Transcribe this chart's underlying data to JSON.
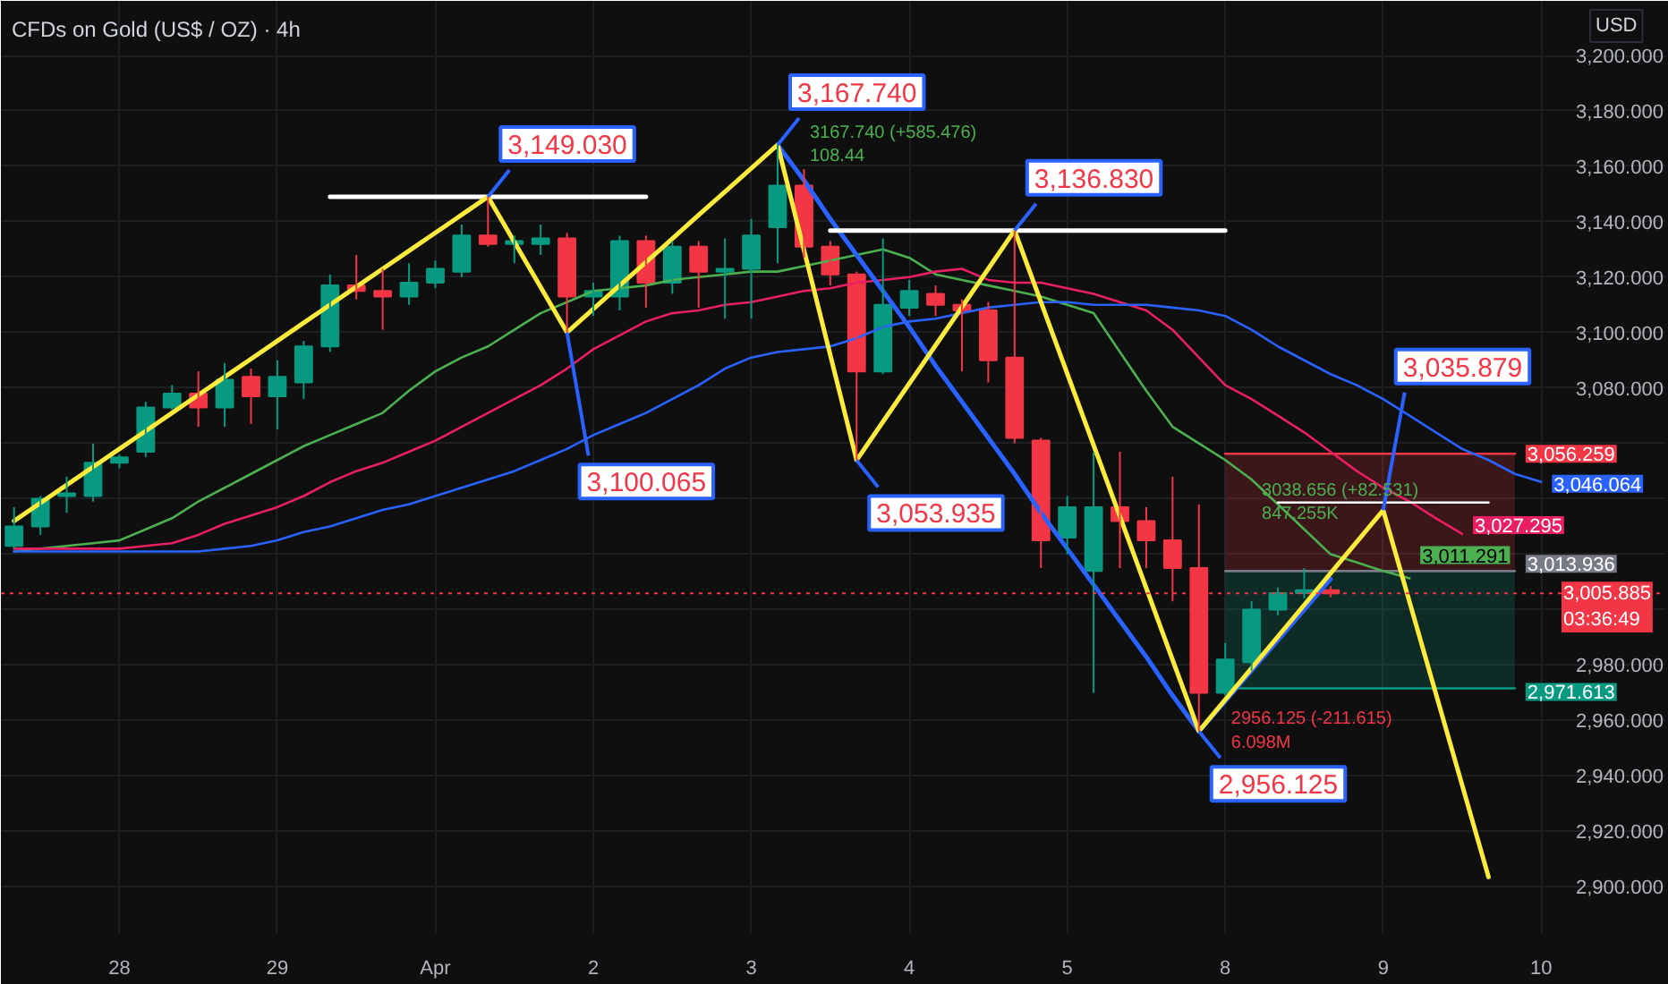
{
  "chart_data": {
    "type": "candlestick",
    "title": "CFDs on Gold (US$ / OZ) · 4h",
    "ylabel": "USD",
    "categories": [
      null,
      null,
      null,
      null,
      "28",
      null,
      null,
      null,
      null,
      null,
      "29",
      null,
      null,
      null,
      null,
      null,
      "Apr",
      null,
      null,
      null,
      null,
      null,
      "2",
      null,
      null,
      null,
      null,
      null,
      "3",
      null,
      null,
      null,
      null,
      null,
      "4",
      null,
      null,
      null,
      null,
      null,
      "5",
      null,
      null,
      null,
      null,
      null,
      "8",
      null,
      null,
      null,
      null,
      null,
      "9",
      null,
      null,
      null,
      null,
      null,
      "10"
    ],
    "ylim": [
      2883.3,
      3219.7
    ],
    "yticks": [
      {
        "value": 2900,
        "label": "2,900.000"
      },
      {
        "value": 2920,
        "label": "2,920.000"
      },
      {
        "value": 2940,
        "label": "2,940.000"
      },
      {
        "value": 2960,
        "label": "2,960.000"
      },
      {
        "value": 2980,
        "label": "2,980.000"
      },
      {
        "value": 3000,
        "label": null
      },
      {
        "value": 3020,
        "label": null
      },
      {
        "value": 3040,
        "label": null
      },
      {
        "value": 3060,
        "label": null
      },
      {
        "value": 3080,
        "label": "3,080.000"
      },
      {
        "value": 3100,
        "label": "3,100.000"
      },
      {
        "value": 3120,
        "label": "3,120.000"
      },
      {
        "value": 3140,
        "label": "3,140.000"
      },
      {
        "value": 3160,
        "label": "3,160.000"
      },
      {
        "value": 3180,
        "label": "3,180.000"
      },
      {
        "value": 3200,
        "label": "3,200.000"
      }
    ],
    "grid": true,
    "series": [
      {
        "type": "line",
        "color": "#f23645",
        "values": [
          null,
          null,
          null,
          null,
          null,
          null,
          null,
          null,
          null,
          null,
          null,
          null,
          null,
          null,
          null,
          null,
          null,
          null,
          null,
          null,
          null,
          null,
          null,
          null,
          null,
          null,
          null,
          null,
          null,
          null,
          null,
          null,
          null,
          null,
          null,
          null,
          null,
          null,
          null,
          null,
          null,
          null,
          null,
          null,
          null,
          null,
          3056.259,
          3056.259,
          3056.259,
          3056.259,
          3056.259,
          3056.259,
          3056.259,
          3056.259,
          3056.259,
          3056.259,
          3056.259,
          3056.259,
          null
        ],
        "upper": [
          null,
          null,
          null,
          null,
          null,
          null,
          null,
          null,
          null,
          null,
          null,
          null,
          null,
          null,
          null,
          null,
          null,
          null,
          null,
          null,
          null,
          null,
          null,
          null,
          null,
          null,
          null,
          null,
          null,
          null,
          null,
          null,
          null,
          null,
          null,
          null,
          null,
          null,
          null,
          null,
          null,
          null,
          null,
          null,
          null,
          null,
          3056.259,
          3056.259,
          3056.259,
          3056.259,
          3056.259,
          3056.259,
          3056.259,
          3056.259,
          3056.259,
          3056.259,
          3056.259,
          3056.259,
          null
        ],
        "lower": [
          null,
          null,
          null,
          null,
          null,
          null,
          null,
          null,
          null,
          null,
          null,
          null,
          null,
          null,
          null,
          null,
          null,
          null,
          null,
          null,
          null,
          null,
          null,
          null,
          null,
          null,
          null,
          null,
          null,
          null,
          null,
          null,
          null,
          null,
          null,
          null,
          null,
          null,
          null,
          null,
          null,
          null,
          null,
          null,
          null,
          null,
          3013.936,
          3013.936,
          3013.936,
          3013.936,
          3013.936,
          3013.936,
          3013.936,
          3013.936,
          3013.936,
          3013.936,
          3013.936,
          3013.936,
          null
        ],
        "value_labels": [
          null,
          null,
          null,
          null,
          null,
          null,
          null,
          null,
          null,
          null,
          null,
          null,
          null,
          null,
          null,
          null,
          null,
          null,
          null,
          null,
          null,
          null,
          null,
          null,
          null,
          null,
          null,
          null,
          null,
          null,
          null,
          null,
          null,
          null,
          null,
          null,
          null,
          null,
          null,
          null,
          null,
          null,
          null,
          null,
          null,
          null,
          null,
          null,
          null,
          null,
          null,
          null,
          null,
          null,
          null,
          null,
          null,
          "3,056.259",
          null
        ]
      },
      {
        "type": "line",
        "color": "#089981",
        "values": [
          null,
          null,
          null,
          null,
          null,
          null,
          null,
          null,
          null,
          null,
          null,
          null,
          null,
          null,
          null,
          null,
          null,
          null,
          null,
          null,
          null,
          null,
          null,
          null,
          null,
          null,
          null,
          null,
          null,
          null,
          null,
          null,
          null,
          null,
          null,
          null,
          null,
          null,
          null,
          null,
          null,
          null,
          null,
          null,
          null,
          null,
          2971.613,
          2971.613,
          2971.613,
          2971.613,
          2971.613,
          2971.613,
          2971.613,
          2971.613,
          2971.613,
          2971.613,
          2971.613,
          2971.613,
          null
        ],
        "upper": [
          null,
          null,
          null,
          null,
          null,
          null,
          null,
          null,
          null,
          null,
          null,
          null,
          null,
          null,
          null,
          null,
          null,
          null,
          null,
          null,
          null,
          null,
          null,
          null,
          null,
          null,
          null,
          null,
          null,
          null,
          null,
          null,
          null,
          null,
          null,
          null,
          null,
          null,
          null,
          null,
          null,
          null,
          null,
          null,
          null,
          null,
          3013.936,
          3013.936,
          3013.936,
          3013.936,
          3013.936,
          3013.936,
          3013.936,
          3013.936,
          3013.936,
          3013.936,
          3013.936,
          3013.936,
          null
        ],
        "lower": [
          null,
          null,
          null,
          null,
          null,
          null,
          null,
          null,
          null,
          null,
          null,
          null,
          null,
          null,
          null,
          null,
          null,
          null,
          null,
          null,
          null,
          null,
          null,
          null,
          null,
          null,
          null,
          null,
          null,
          null,
          null,
          null,
          null,
          null,
          null,
          null,
          null,
          null,
          null,
          null,
          null,
          null,
          null,
          null,
          null,
          null,
          2971.613,
          2971.613,
          2971.613,
          2971.613,
          2971.613,
          2971.613,
          2971.613,
          2971.613,
          2971.613,
          2971.613,
          2971.613,
          2971.613,
          null
        ],
        "value_labels": [
          null,
          null,
          null,
          null,
          null,
          null,
          null,
          null,
          null,
          null,
          null,
          null,
          null,
          null,
          null,
          null,
          null,
          null,
          null,
          null,
          null,
          null,
          null,
          null,
          null,
          null,
          null,
          null,
          null,
          null,
          null,
          null,
          null,
          null,
          null,
          null,
          null,
          null,
          null,
          null,
          null,
          null,
          null,
          null,
          null,
          null,
          null,
          null,
          null,
          null,
          null,
          null,
          null,
          null,
          null,
          null,
          null,
          "2,971.613",
          null
        ]
      },
      {
        "type": "line",
        "color": "#787b86",
        "values": [
          null,
          null,
          null,
          null,
          null,
          null,
          null,
          null,
          null,
          null,
          null,
          null,
          null,
          null,
          null,
          null,
          null,
          null,
          null,
          null,
          null,
          null,
          null,
          null,
          null,
          null,
          null,
          null,
          null,
          null,
          null,
          null,
          null,
          null,
          null,
          null,
          null,
          null,
          null,
          null,
          null,
          null,
          null,
          null,
          null,
          null,
          3013.936,
          3013.936,
          3013.936,
          3013.936,
          3013.936,
          3013.936,
          3013.936,
          3013.936,
          3013.936,
          3013.936,
          3013.936,
          3013.936,
          null
        ],
        "value_labels": [
          null,
          null,
          null,
          null,
          null,
          null,
          null,
          null,
          null,
          null,
          null,
          null,
          null,
          null,
          null,
          null,
          null,
          null,
          null,
          null,
          null,
          null,
          null,
          null,
          null,
          null,
          null,
          null,
          null,
          null,
          null,
          null,
          null,
          null,
          null,
          null,
          null,
          null,
          null,
          null,
          null,
          null,
          null,
          null,
          null,
          null,
          null,
          null,
          null,
          null,
          null,
          null,
          null,
          null,
          null,
          null,
          null,
          "3,013.936",
          null
        ]
      },
      {
        "type": "line",
        "color": "#4caf50",
        "values": [
          3021,
          3022,
          3023,
          3024,
          3025,
          3029,
          3033,
          3039,
          3044,
          3049,
          3054,
          3059,
          3063,
          3067,
          3071,
          3079,
          3086,
          3091,
          3095,
          3101,
          3107,
          3111,
          3115,
          3116,
          3117,
          3119,
          3120,
          3121,
          3122,
          3122,
          3124,
          3126,
          3128,
          3130,
          3127,
          3121,
          3119,
          3117,
          3115,
          3113,
          3110,
          3107,
          3093,
          3079,
          3066,
          3060,
          3054,
          3047,
          3038,
          3029,
          3020,
          3017,
          3014,
          3011.291,
          null,
          null,
          null,
          null,
          null
        ],
        "value_labels": [
          null,
          null,
          null,
          null,
          null,
          null,
          null,
          null,
          null,
          null,
          null,
          null,
          null,
          null,
          null,
          null,
          null,
          null,
          null,
          null,
          null,
          null,
          null,
          null,
          null,
          null,
          null,
          null,
          null,
          null,
          null,
          null,
          null,
          null,
          null,
          null,
          null,
          null,
          null,
          null,
          null,
          null,
          null,
          null,
          null,
          null,
          null,
          null,
          null,
          null,
          null,
          null,
          null,
          "3,011.291",
          null,
          null,
          null,
          null,
          null
        ]
      },
      {
        "type": "line",
        "color": "#e91e63",
        "values": [
          3022,
          3022,
          3022,
          3022,
          3022,
          3023,
          3024,
          3027,
          3031,
          3034,
          3037,
          3041,
          3046,
          3050,
          3053,
          3057,
          3061,
          3066,
          3071,
          3076,
          3081,
          3087,
          3094,
          3099,
          3104,
          3107,
          3108,
          3110,
          3111,
          3113,
          3115,
          3116,
          3118,
          3119,
          3120,
          3122,
          3123,
          3119,
          3118,
          3118,
          3116,
          3114,
          3111,
          3108,
          3101,
          3091,
          3081,
          3076,
          3070,
          3064,
          3057,
          3050,
          3044,
          3039,
          3033,
          3027.295,
          null,
          null,
          null
        ],
        "value_labels": [
          null,
          null,
          null,
          null,
          null,
          null,
          null,
          null,
          null,
          null,
          null,
          null,
          null,
          null,
          null,
          null,
          null,
          null,
          null,
          null,
          null,
          null,
          null,
          null,
          null,
          null,
          null,
          null,
          null,
          null,
          null,
          null,
          null,
          null,
          null,
          null,
          null,
          null,
          null,
          null,
          null,
          null,
          null,
          null,
          null,
          null,
          null,
          null,
          null,
          null,
          null,
          null,
          null,
          null,
          null,
          "3,027.295",
          null,
          null,
          null
        ]
      },
      {
        "type": "line",
        "color": "#2962ff",
        "values": [
          3021,
          3021,
          3021,
          3021,
          3021,
          3021,
          3021,
          3021,
          3022,
          3023,
          3025,
          3028,
          3030,
          3033,
          3036,
          3038,
          3041,
          3044,
          3047,
          3050,
          3054,
          3058,
          3063,
          3067,
          3071,
          3076,
          3081,
          3087,
          3091,
          3093,
          3094,
          3095,
          3098,
          3102,
          3104,
          3105,
          3107,
          3109,
          3110,
          3111,
          3111,
          3110,
          3110,
          3110,
          3109,
          3108,
          3106,
          3101,
          3095,
          3090,
          3085,
          3081,
          3076,
          3070,
          3064,
          3058,
          3054,
          3049,
          3046.064
        ],
        "value_labels": [
          null,
          null,
          null,
          null,
          null,
          null,
          null,
          null,
          null,
          null,
          null,
          null,
          null,
          null,
          null,
          null,
          null,
          null,
          null,
          null,
          null,
          null,
          null,
          null,
          null,
          null,
          null,
          null,
          null,
          null,
          null,
          null,
          null,
          null,
          null,
          null,
          null,
          null,
          null,
          null,
          null,
          null,
          null,
          null,
          null,
          null,
          null,
          null,
          null,
          null,
          null,
          null,
          null,
          null,
          null,
          null,
          null,
          null,
          "3,046.064"
        ]
      },
      {
        "ohlc": [
          [
            3023,
            3037,
            3022,
            3030
          ],
          [
            3030,
            3041,
            3027,
            3040
          ],
          [
            3041,
            3048,
            3035,
            3042
          ],
          [
            3041,
            3060,
            3039,
            3053
          ],
          [
            3053,
            3056,
            3051,
            3055
          ],
          [
            3057,
            3075,
            3055,
            3073
          ],
          [
            3073,
            3081,
            3072,
            3078
          ],
          [
            3078,
            3086,
            3066,
            3073
          ],
          [
            3073,
            3089,
            3066,
            3083
          ],
          [
            3084,
            3087,
            3067,
            3077
          ],
          [
            3077,
            3090,
            3065,
            3084
          ],
          [
            3082,
            3097,
            3076,
            3095
          ],
          [
            3095,
            3121,
            3093,
            3117
          ],
          [
            3117,
            3128,
            3112,
            3115
          ],
          [
            3115,
            3123,
            3101,
            3113
          ],
          [
            3113,
            3125,
            3110,
            3118
          ],
          [
            3118,
            3126,
            3116,
            3123
          ],
          [
            3122,
            3139,
            3120,
            3135
          ],
          [
            3135,
            3149.03,
            3131,
            3132
          ],
          [
            3132,
            3135,
            3125,
            3133
          ],
          [
            3132,
            3139,
            3128,
            3134
          ],
          [
            3134,
            3136,
            3100.065,
            3113
          ],
          [
            3113,
            3118,
            3106,
            3115
          ],
          [
            3113,
            3135,
            3108,
            3133
          ],
          [
            3133,
            3135,
            3109,
            3118
          ],
          [
            3118,
            3133,
            3114,
            3131
          ],
          [
            3131,
            3133,
            3109,
            3122
          ],
          [
            3122,
            3134,
            3105,
            3123
          ],
          [
            3123,
            3141,
            3105,
            3135
          ],
          [
            3138,
            3167.74,
            3125,
            3153
          ],
          [
            3153,
            3159,
            3127,
            3131
          ],
          [
            3131,
            3133,
            3117,
            3121
          ],
          [
            3121,
            3122,
            3053.935,
            3086
          ],
          [
            3086,
            3134,
            3085,
            3110
          ],
          [
            3109,
            3119,
            3106,
            3115
          ],
          [
            3114,
            3117,
            3106,
            3110
          ],
          [
            3110,
            3112,
            3086,
            3108
          ],
          [
            3108,
            3111,
            3082,
            3090
          ],
          [
            3091,
            3136.83,
            3060,
            3062
          ],
          [
            3061,
            3062,
            3015,
            3025
          ],
          [
            3026,
            3041,
            3020,
            3037
          ],
          [
            3014,
            3057,
            2970,
            3037
          ],
          [
            3037,
            3057,
            3015,
            3032
          ],
          [
            3032,
            3037,
            3015,
            3025
          ],
          [
            3025,
            3048,
            3003,
            3015
          ],
          [
            3015,
            3038,
            2956.125,
            2970
          ],
          [
            2970,
            2988,
            2969,
            2982
          ],
          [
            2981,
            3003,
            2978,
            3000
          ],
          [
            3000,
            3008,
            2998,
            3006
          ],
          [
            3006,
            3015,
            3004,
            3007
          ],
          [
            3007,
            3008.5,
            3004.5,
            3005.885
          ],
          null,
          null,
          null,
          null,
          null,
          null,
          null,
          null
        ],
        "colors": [
          "#089981",
          "#089981",
          "#089981",
          "#089981",
          "#089981",
          "#089981",
          "#089981",
          "#f23645",
          "#089981",
          "#f23645",
          "#089981",
          "#089981",
          "#089981",
          "#f23645",
          "#f23645",
          "#089981",
          "#089981",
          "#089981",
          "#f23645",
          "#089981",
          "#089981",
          "#f23645",
          "#089981",
          "#089981",
          "#f23645",
          "#089981",
          "#f23645",
          "#089981",
          "#089981",
          "#089981",
          "#f23645",
          "#f23645",
          "#f23645",
          "#089981",
          "#089981",
          "#f23645",
          "#f23645",
          "#f23645",
          "#f23645",
          "#f23645",
          "#089981",
          "#089981",
          "#f23645",
          "#f23645",
          "#f23645",
          "#f23645",
          "#089981",
          "#089981",
          "#089981",
          "#089981",
          "#f23645",
          null,
          null,
          null,
          null,
          null,
          null,
          null,
          null
        ]
      },
      {
        "type": "line",
        "color": "#2962ff",
        "values": [
          null,
          null,
          null,
          null,
          null,
          null,
          null,
          null,
          null,
          null,
          null,
          null,
          null,
          null,
          null,
          null,
          null,
          null,
          null,
          null,
          null,
          null,
          null,
          null,
          null,
          null,
          null,
          null,
          null,
          3167.74,
          3155,
          3141,
          3128,
          3115,
          3102,
          3088,
          3075,
          3062,
          3049,
          3035,
          3022,
          3009,
          2996,
          2983,
          2969,
          2956.125,
          2967,
          2978,
          2989,
          3000,
          3011,
          null,
          null,
          null,
          null,
          null,
          null,
          null,
          null
        ],
        "value_labels": [
          null,
          null,
          null,
          null,
          null,
          null,
          null,
          null,
          null,
          null,
          null,
          null,
          null,
          null,
          null,
          null,
          null,
          null,
          null,
          null,
          null,
          null,
          null,
          null,
          null,
          null,
          null,
          null,
          null,
          "3167.740 (+585.476)\n108.44",
          null,
          null,
          null,
          null,
          null,
          null,
          null,
          null,
          null,
          null,
          null,
          null,
          null,
          null,
          null,
          "2956.125 (-211.615)\n6.098M",
          null,
          null,
          null,
          null,
          null,
          null,
          null,
          null,
          null,
          null,
          null,
          null,
          null
        ]
      },
      {
        "type": "line",
        "color": "#ffffff",
        "values": [
          null,
          null,
          null,
          null,
          null,
          null,
          null,
          null,
          null,
          null,
          null,
          null,
          3149.03,
          3149.03,
          3149.03,
          3149.03,
          3149.03,
          3149.03,
          3149.03,
          3149.03,
          3149.03,
          3149.03,
          3149.03,
          3149.03,
          3149.03,
          null,
          null,
          null,
          null,
          null,
          null,
          null,
          null,
          null,
          null,
          null,
          null,
          null,
          null,
          null,
          null,
          null,
          null,
          null,
          null,
          null,
          null,
          null,
          null,
          null,
          null,
          null,
          null,
          null,
          null,
          null,
          null,
          null,
          null
        ]
      },
      {
        "type": "line",
        "color": "#ffffff",
        "values": [
          null,
          null,
          null,
          null,
          null,
          null,
          null,
          null,
          null,
          null,
          null,
          null,
          null,
          null,
          null,
          null,
          null,
          null,
          null,
          null,
          null,
          null,
          null,
          null,
          null,
          null,
          null,
          null,
          null,
          null,
          null,
          3136.83,
          3136.83,
          3136.83,
          3136.83,
          3136.83,
          3136.83,
          3136.83,
          3136.83,
          3136.83,
          3136.83,
          3136.83,
          3136.83,
          3136.83,
          3136.83,
          3136.83,
          3136.83,
          null,
          null,
          null,
          null,
          null,
          null,
          null,
          null,
          null,
          null,
          null,
          null
        ]
      },
      {
        "type": "line",
        "color": "#ffffff",
        "values": [
          null,
          null,
          null,
          null,
          null,
          null,
          null,
          null,
          null,
          null,
          null,
          null,
          null,
          null,
          null,
          null,
          null,
          null,
          null,
          null,
          null,
          null,
          null,
          null,
          null,
          null,
          null,
          null,
          null,
          null,
          null,
          null,
          null,
          null,
          null,
          null,
          null,
          null,
          null,
          null,
          null,
          null,
          null,
          null,
          null,
          null,
          null,
          null,
          3038.656,
          3038.656,
          3038.656,
          3038.656,
          3038.656,
          3038.656,
          3038.656,
          3038.656,
          3038.656,
          null,
          null
        ],
        "value_labels": [
          null,
          null,
          null,
          null,
          null,
          null,
          null,
          null,
          null,
          null,
          null,
          null,
          null,
          null,
          null,
          null,
          null,
          null,
          null,
          null,
          null,
          null,
          null,
          null,
          null,
          null,
          null,
          null,
          null,
          null,
          null,
          null,
          null,
          null,
          null,
          null,
          null,
          null,
          null,
          null,
          null,
          null,
          null,
          null,
          null,
          null,
          null,
          null,
          "3038.656 (+82.531)\n847.255K",
          null,
          null,
          null,
          null,
          null,
          null,
          null,
          null,
          null,
          null
        ]
      },
      {
        "type": "line",
        "color": "#ffeb3b",
        "values": [
          3032,
          3038.5,
          3045,
          3051.5,
          3058,
          3064.5,
          3071,
          3077.5,
          3084,
          3090.5,
          3097,
          3103.5,
          3110,
          3116.5,
          3123,
          3129.5,
          3136,
          3142.5,
          3149.03,
          3132.7,
          3116.4,
          3100.065,
          3108.5,
          3117,
          3125.4,
          3133.9,
          3142.4,
          3150.8,
          3159.3,
          3167.74,
          3129.8,
          3091.9,
          3053.935,
          3067.8,
          3081.6,
          3095.4,
          3109.2,
          3123,
          3136.83,
          3111,
          3085.2,
          3059.4,
          3033.6,
          3007.8,
          2981.9,
          2956.125,
          2967.5,
          2978.9,
          2990.3,
          3001.7,
          3013.1,
          3024.5,
          3035.879,
          3002.8,
          2969.7,
          2936.6,
          2903.5,
          null,
          null
        ],
        "value_labels": [
          null,
          null,
          null,
          null,
          null,
          null,
          null,
          null,
          null,
          null,
          null,
          null,
          null,
          null,
          null,
          null,
          null,
          null,
          "3,149.030",
          null,
          null,
          "3,100.065",
          null,
          null,
          null,
          null,
          null,
          null,
          null,
          "3,167.740",
          null,
          null,
          "3,053.935",
          null,
          null,
          null,
          null,
          null,
          "3,136.830",
          null,
          null,
          null,
          null,
          null,
          null,
          "2,956.125",
          null,
          null,
          null,
          null,
          null,
          null,
          "3,035.879",
          null,
          null,
          null,
          null,
          null,
          null
        ]
      }
    ],
    "ref_lines": [
      {
        "axis": "y",
        "value": 3005.885,
        "label": "3,005.885\n03:36:49",
        "color": "#f23645",
        "line_style": "dotted"
      }
    ]
  }
}
